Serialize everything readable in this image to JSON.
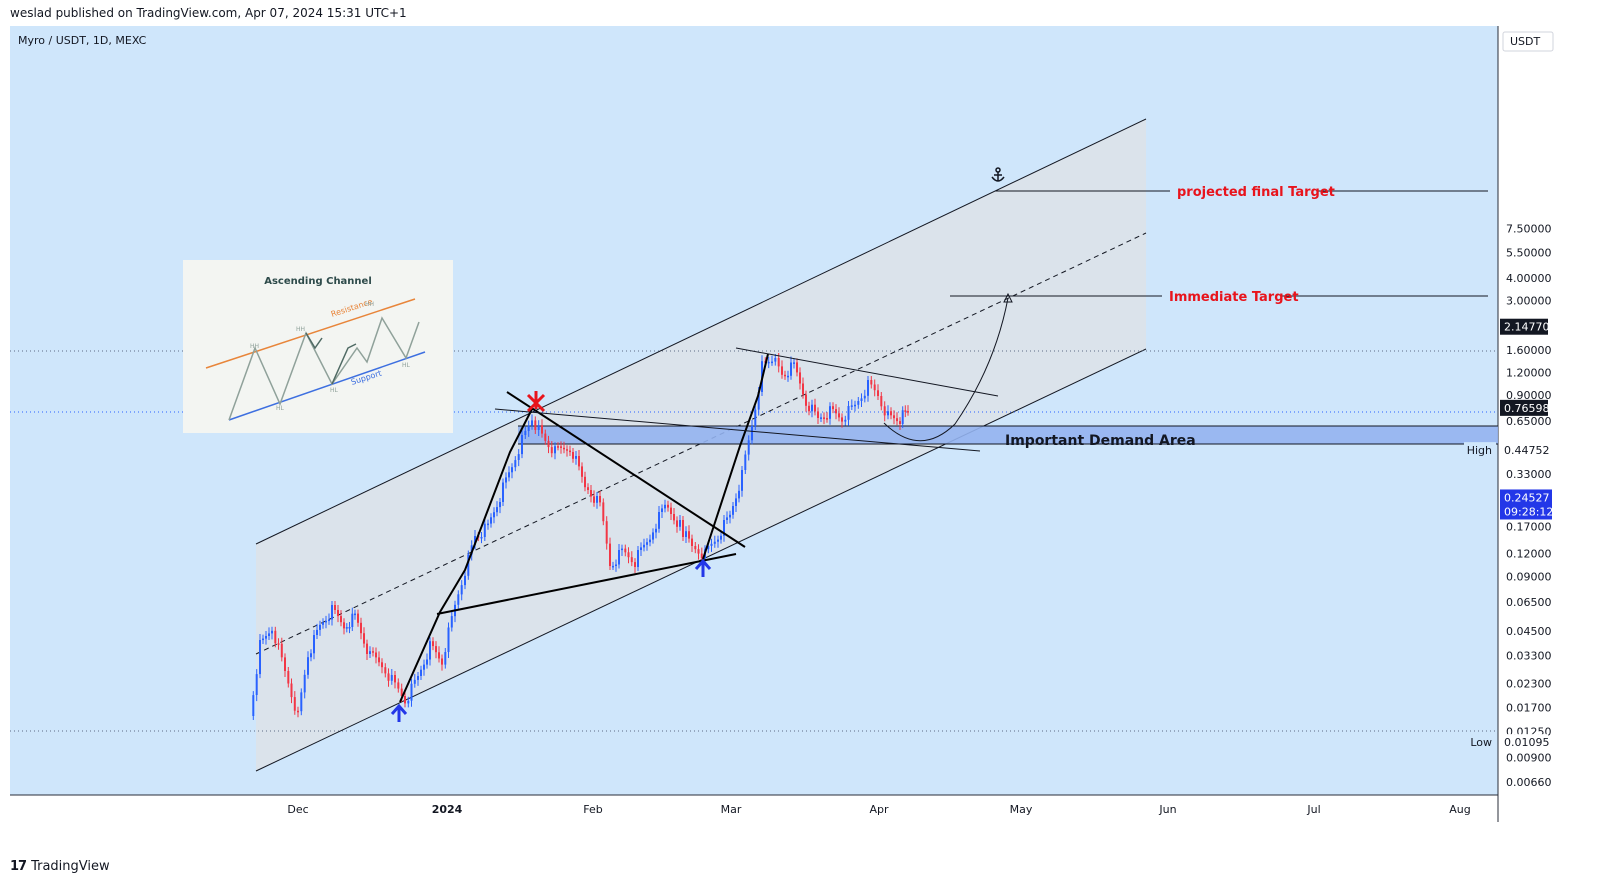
{
  "header": {
    "publisher_line": "weslad published on TradingView.com, Apr 07, 2024 15:31 UTC+1"
  },
  "symbol_line": "Myro / USDT, 1D, MEXC",
  "footer": {
    "logo": "17",
    "brand": "TradingView"
  },
  "colors": {
    "bg": "#cfe6fb",
    "channel_fill": "#dfe3e8",
    "up": "#2962ff",
    "down": "#f23645",
    "target": "#e8141c",
    "demand": "#8fb1f0",
    "dark": "#131722"
  },
  "inset": {
    "title": "Ascending Channel",
    "resistance": "Resistance",
    "support": "Support",
    "hh": "HH",
    "hl": "HL"
  },
  "annotations": {
    "projected_final_target": "projected final Target",
    "immediate_target": "Immediate Target",
    "demand_area": "Important Demand Area",
    "anchor_icon": "anchor-icon",
    "marker_icons": [
      "arrow-up-icon",
      "arrow-up-icon",
      "cross-icon"
    ]
  },
  "chart_data": {
    "type": "candlestick",
    "scale": "log",
    "currency_label": "USDT",
    "y_ticks": [
      "7.50000",
      "5.50000",
      "4.00000",
      "3.00000",
      "1.60000",
      "1.20000",
      "0.90000",
      "0.65000",
      "0.33000",
      "0.17000",
      "0.12000",
      "0.09000",
      "0.06500",
      "0.04500",
      "0.03300",
      "0.02300",
      "0.01700",
      "0.01250",
      "0.00900",
      "0.00660"
    ],
    "x_ticks": [
      "Dec",
      "2024",
      "Feb",
      "Mar",
      "Apr",
      "May",
      "Jun",
      "Jul",
      "Aug"
    ],
    "price_labels": [
      {
        "name": "",
        "value": "2.14770",
        "style": "dark"
      },
      {
        "name": "",
        "value": "0.76598",
        "style": "dark"
      },
      {
        "name": "High",
        "value": "0.44752",
        "style": "plain"
      },
      {
        "name": "",
        "value": "0.24527",
        "sub": "09:28:12",
        "style": "blue"
      },
      {
        "name": "Low",
        "value": "0.01095",
        "style": "plain"
      }
    ],
    "ylim": [
      0.0058,
      9.5
    ],
    "xlim": [
      "2023-11-07",
      "2024-08-15"
    ]
  }
}
